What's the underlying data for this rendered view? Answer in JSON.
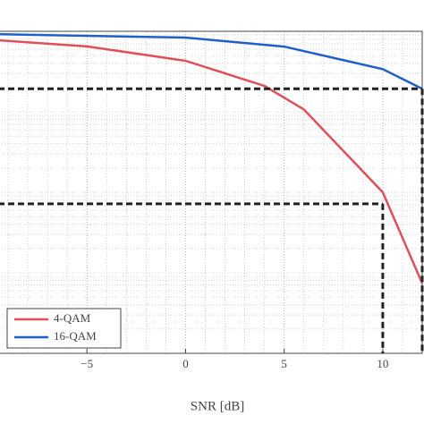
{
  "chart_data": {
    "type": "line",
    "x_label": "SNR [dB]",
    "series": [
      {
        "name": "4-QAM",
        "color": "#e0505a",
        "x": [
          -10,
          -5,
          0,
          4,
          6,
          10,
          12
        ],
        "values": [
          0.79,
          0.65,
          0.43,
          0.21,
          0.107,
          0.01,
          0.00074
        ]
      },
      {
        "name": "16-QAM",
        "color": "#1f5fc8",
        "x": [
          -10,
          0,
          5,
          10,
          12
        ],
        "values": [
          0.925,
          0.835,
          0.646,
          0.339,
          0.193
        ]
      }
    ],
    "thresholds": [
      {
        "x": 12,
        "y": 0.193
      },
      {
        "x": 10,
        "y": 0.0072
      }
    ],
    "xlim": [
      -10,
      12
    ],
    "xticks": [
      {
        "value": -5,
        "label": "−5"
      },
      0,
      5,
      10
    ],
    "ylim": [
      0.0001,
      1
    ],
    "log_y": true,
    "grid": true,
    "legend": "lower-left"
  }
}
